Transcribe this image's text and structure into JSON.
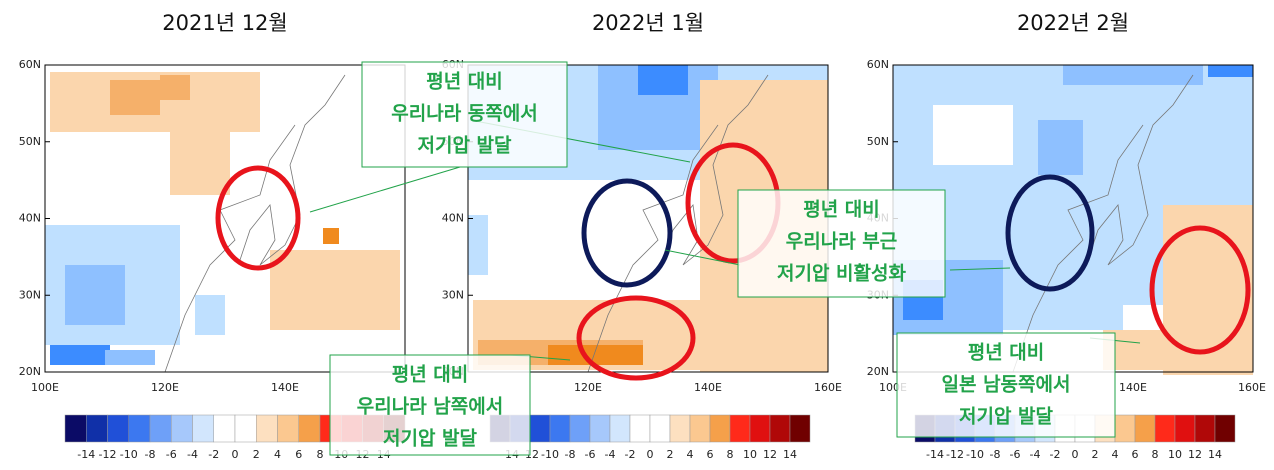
{
  "panels": [
    {
      "title": "2021년 12월",
      "lon_labels": [
        "100E",
        "120E",
        "140E"
      ]
    },
    {
      "title": "2022년 1월",
      "lon_labels": [
        "120E",
        "140E",
        "160E"
      ]
    },
    {
      "title": "2022년 2월",
      "lon_labels": [
        "100E",
        "140E",
        "160E"
      ]
    }
  ],
  "lat_labels": [
    "60N",
    "50N",
    "40N",
    "30N",
    "20N"
  ],
  "colorbar": {
    "ticks": [
      -14,
      -12,
      -10,
      -8,
      -6,
      -4,
      -2,
      0,
      2,
      4,
      6,
      8,
      10,
      12,
      14
    ],
    "colors": [
      "#0b0b66",
      "#1030a8",
      "#2050d8",
      "#3c78f0",
      "#6ea0f8",
      "#a6c8fb",
      "#d2e6fd",
      "#ffffff",
      "#ffffff",
      "#fde0c0",
      "#fbc890",
      "#f5a04a",
      "#ff2a1a",
      "#e01010",
      "#b00808",
      "#700000"
    ]
  },
  "annotations": [
    {
      "lines": [
        "평년 대비",
        "우리나라 동쪽에서",
        "저기압 발달"
      ]
    },
    {
      "lines": [
        "평년 대비",
        "우리나라 부근",
        "저기압 비활성화"
      ]
    },
    {
      "lines": [
        "평년 대비",
        "우리나라 남쪽에서",
        "저기압 발달"
      ]
    },
    {
      "lines": [
        "평년 대비",
        "일본 남동쪽에서",
        "저기압 발달"
      ]
    }
  ]
}
